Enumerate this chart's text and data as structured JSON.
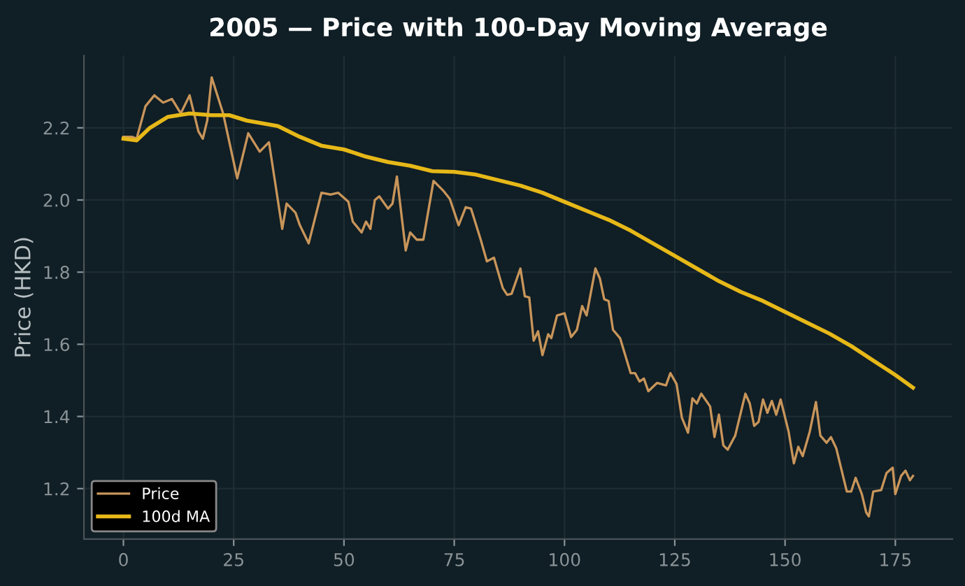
{
  "chart_data": {
    "type": "line",
    "title": "2005 — Price with 100-Day Moving Average",
    "ylabel": "Price (HKD)",
    "xlim": [
      -8.95,
      187.95
    ],
    "ylim": [
      1.06,
      2.4
    ],
    "xticks": [
      0,
      25,
      50,
      75,
      100,
      125,
      150,
      175
    ],
    "yticks": [
      1.2,
      1.4,
      1.6,
      1.8,
      {
        "value": 2.0,
        "label": "2.0"
      },
      2.2
    ],
    "grid": true,
    "legend": "bottom left",
    "line_style": "solid",
    "marker": "none",
    "series": [
      {
        "name": "Price",
        "color": "#c8955a",
        "x": [
          0,
          2,
          3,
          5,
          7,
          9,
          11,
          13,
          15,
          17,
          18,
          19,
          20,
          22.6,
          25.8,
          28.3,
          30.9,
          33,
          36,
          37,
          39,
          40,
          42,
          44.9,
          47,
          48.7,
          51,
          52,
          54,
          55,
          56,
          57,
          58,
          60,
          61,
          62,
          64,
          65,
          66.5,
          68,
          70.3,
          72.5,
          74,
          76,
          77.6,
          78.8,
          81,
          82.4,
          84,
          86,
          87,
          88,
          90,
          91,
          92,
          93,
          94,
          95,
          96.3,
          97,
          98.3,
          100,
          101.5,
          102.8,
          104,
          105,
          107,
          108,
          109,
          110,
          111,
          112.6,
          115,
          116,
          117,
          118,
          119,
          121,
          123,
          124,
          125.4,
          126.6,
          128,
          129,
          130,
          131,
          133,
          134,
          135,
          136,
          137,
          138.7,
          141,
          142,
          143,
          144,
          145,
          146,
          147,
          148,
          149,
          150.8,
          152,
          153,
          154,
          155.6,
          157,
          158,
          159.4,
          160.4,
          161.6,
          164,
          165,
          166,
          167.4,
          168.4,
          169,
          170,
          171.8,
          173,
          174.4,
          175,
          176.3,
          177.3,
          178.3,
          179
        ],
        "values": [
          2.175,
          2.175,
          2.17,
          2.26,
          2.29,
          2.27,
          2.28,
          2.24,
          2.29,
          2.19,
          2.17,
          2.22,
          2.34,
          2.24,
          2.06,
          2.185,
          2.134,
          2.16,
          1.92,
          1.99,
          1.965,
          1.93,
          1.88,
          2.02,
          2.015,
          2.02,
          1.995,
          1.94,
          1.91,
          1.94,
          1.92,
          2.0,
          2.01,
          1.976,
          1.99,
          2.065,
          1.86,
          1.91,
          1.89,
          1.89,
          2.053,
          2.026,
          2.003,
          1.93,
          1.98,
          1.976,
          1.89,
          1.83,
          1.84,
          1.756,
          1.737,
          1.74,
          1.81,
          1.733,
          1.73,
          1.61,
          1.636,
          1.57,
          1.628,
          1.617,
          1.68,
          1.686,
          1.62,
          1.64,
          1.706,
          1.68,
          1.81,
          1.783,
          1.725,
          1.72,
          1.64,
          1.617,
          1.52,
          1.52,
          1.497,
          1.505,
          1.47,
          1.493,
          1.486,
          1.52,
          1.49,
          1.397,
          1.355,
          1.45,
          1.436,
          1.463,
          1.428,
          1.343,
          1.405,
          1.32,
          1.308,
          1.347,
          1.463,
          1.436,
          1.374,
          1.385,
          1.447,
          1.41,
          1.443,
          1.405,
          1.447,
          1.358,
          1.27,
          1.316,
          1.29,
          1.358,
          1.44,
          1.347,
          1.327,
          1.343,
          1.312,
          1.192,
          1.192,
          1.23,
          1.185,
          1.134,
          1.123,
          1.192,
          1.196,
          1.243,
          1.258,
          1.185,
          1.235,
          1.25,
          1.223,
          1.235
        ]
      },
      {
        "name": "100d MA",
        "color": "#e6b818",
        "x": [
          0,
          3,
          6,
          10,
          15,
          20,
          24,
          28,
          35,
          40,
          45,
          50,
          55,
          60,
          65,
          70,
          75,
          80,
          85,
          90,
          95,
          100,
          105,
          110,
          115,
          120,
          125,
          130,
          135,
          140,
          145,
          150,
          155,
          160,
          165,
          170,
          175,
          179
        ],
        "values": [
          2.17,
          2.165,
          2.2,
          2.23,
          2.24,
          2.235,
          2.235,
          2.22,
          2.205,
          2.175,
          2.15,
          2.14,
          2.12,
          2.105,
          2.095,
          2.08,
          2.078,
          2.07,
          2.055,
          2.04,
          2.02,
          1.995,
          1.97,
          1.945,
          1.915,
          1.88,
          1.845,
          1.81,
          1.775,
          1.745,
          1.72,
          1.69,
          1.66,
          1.63,
          1.595,
          1.555,
          1.515,
          1.48
        ]
      }
    ]
  }
}
